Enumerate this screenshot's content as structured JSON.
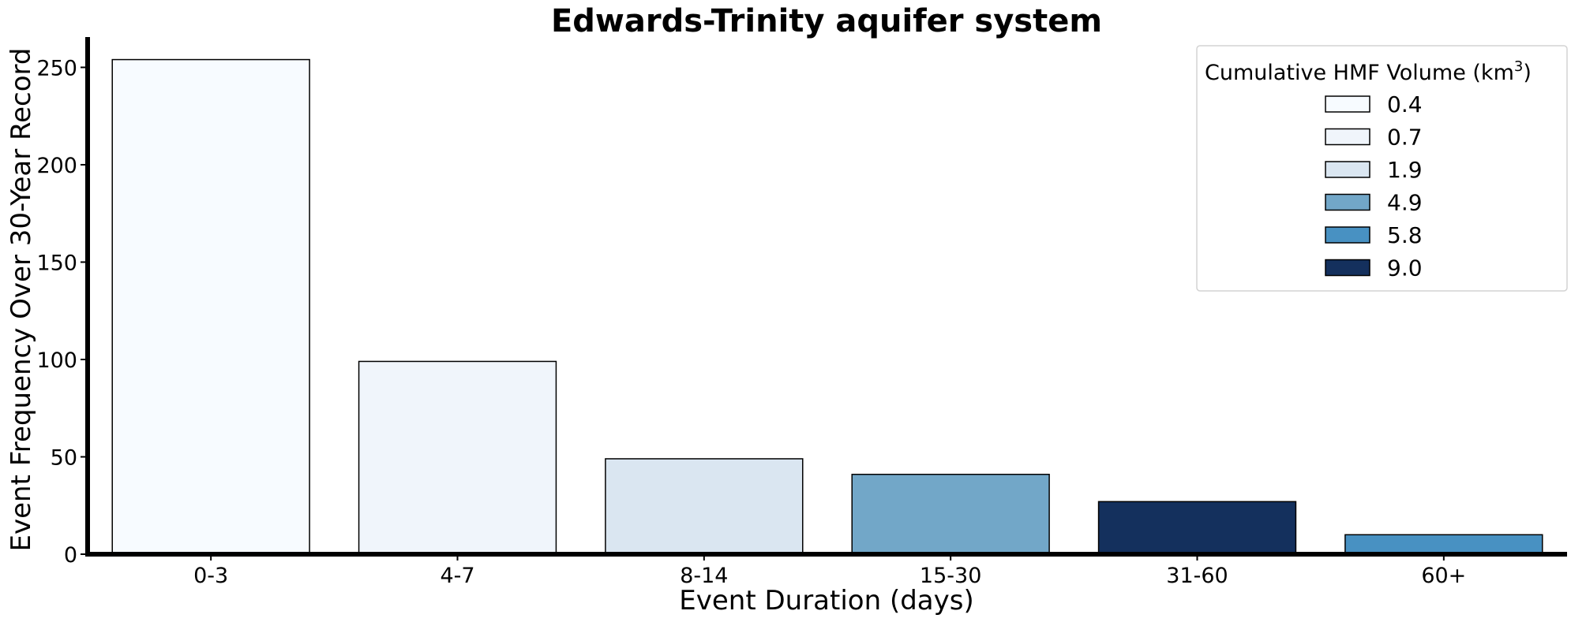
{
  "chart_data": {
    "type": "bar",
    "title": "Edwards-Trinity aquifer system",
    "xlabel": "Event Duration (days)",
    "ylabel": "Event Frequency Over 30-Year Record",
    "categories": [
      "0-3",
      "4-7",
      "8-14",
      "15-30",
      "31-60",
      "60+"
    ],
    "values": [
      254,
      99,
      49,
      41,
      27,
      10
    ],
    "volumes": [
      "0.4",
      "0.7",
      "1.9",
      "4.9",
      "9.0",
      "5.8"
    ],
    "bar_colors": [
      "#f7fbff",
      "#f0f5fb",
      "#dae6f1",
      "#72a7c8",
      "#14305d",
      "#4891c2"
    ],
    "ylim": [
      0,
      268
    ],
    "yticks": [
      0,
      50,
      100,
      150,
      200,
      250
    ],
    "grid": false,
    "legend": {
      "title": "Cumulative HMF Volume (km",
      "title_sup": "3",
      "title_close": ")",
      "placement": "top-right",
      "items": [
        {
          "label": "0.4",
          "color": "#f7fbff"
        },
        {
          "label": "0.7",
          "color": "#f0f5fb"
        },
        {
          "label": "1.9",
          "color": "#dae6f1"
        },
        {
          "label": "4.9",
          "color": "#72a7c8"
        },
        {
          "label": "5.8",
          "color": "#4891c2"
        },
        {
          "label": "9.0",
          "color": "#14305d"
        }
      ]
    }
  }
}
